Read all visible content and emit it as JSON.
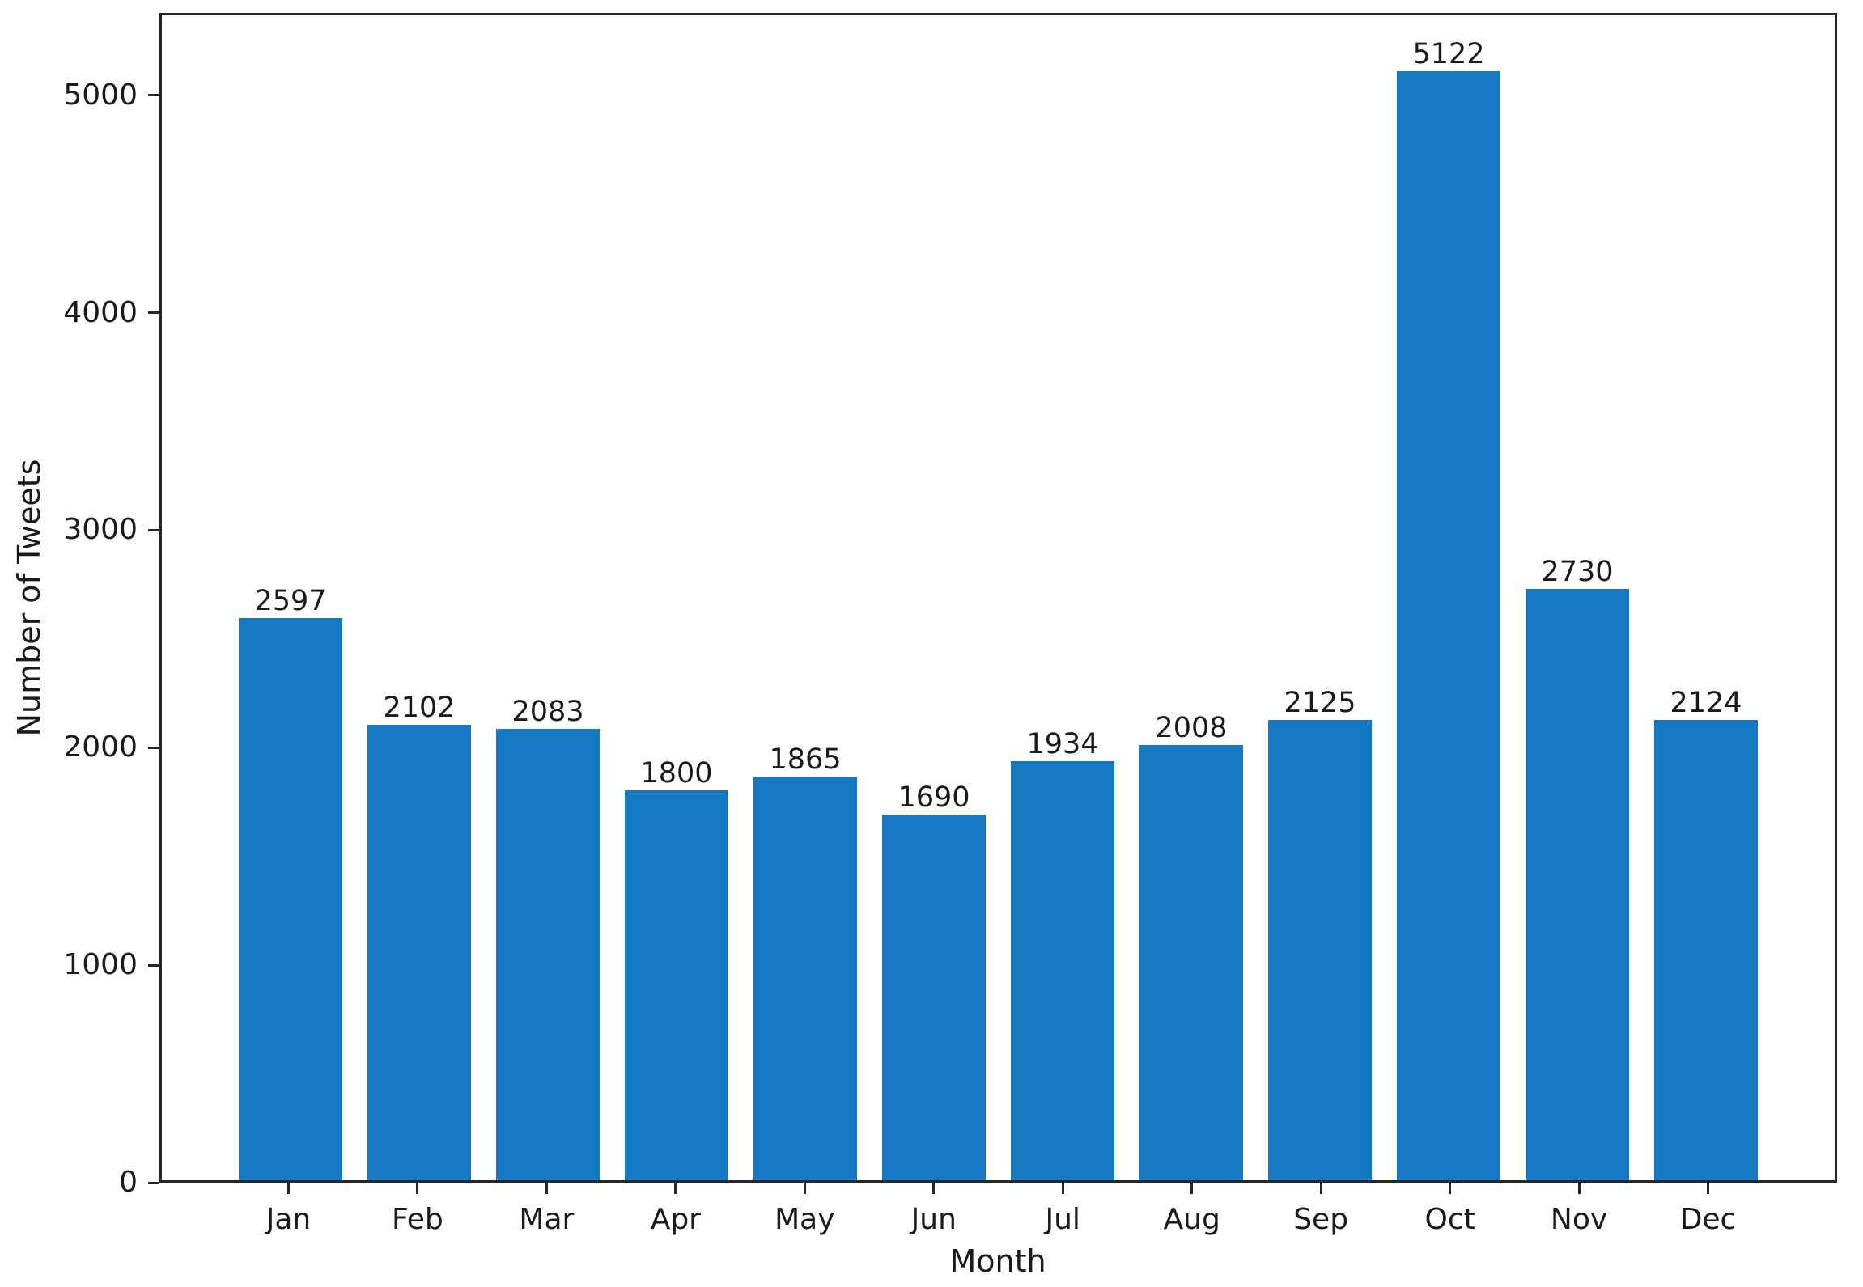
{
  "figure": {
    "background": "#ffffff",
    "spine_color": "#262626",
    "text_color": "#1a1a1a"
  },
  "chart_data": {
    "type": "bar",
    "title": "",
    "xlabel": "Month",
    "ylabel": "Number of Tweets",
    "categories": [
      "Jan",
      "Feb",
      "Mar",
      "Apr",
      "May",
      "Jun",
      "Jul",
      "Aug",
      "Sep",
      "Oct",
      "Nov",
      "Dec"
    ],
    "values": [
      2597,
      2102,
      2083,
      1800,
      1865,
      1690,
      1934,
      2008,
      2125,
      5122,
      2730,
      2124
    ],
    "bar_color": "#1478c2",
    "yticks": [
      0,
      1000,
      2000,
      3000,
      4000,
      5000
    ],
    "ytick_labels": [
      "0",
      "1000",
      "2000",
      "3000",
      "4000",
      "5000"
    ],
    "ylim": [
      0,
      5378
    ],
    "xlim": [
      -1,
      12
    ],
    "bar_width": 0.8,
    "grid": false,
    "legend": null,
    "value_labels_shown": true
  }
}
